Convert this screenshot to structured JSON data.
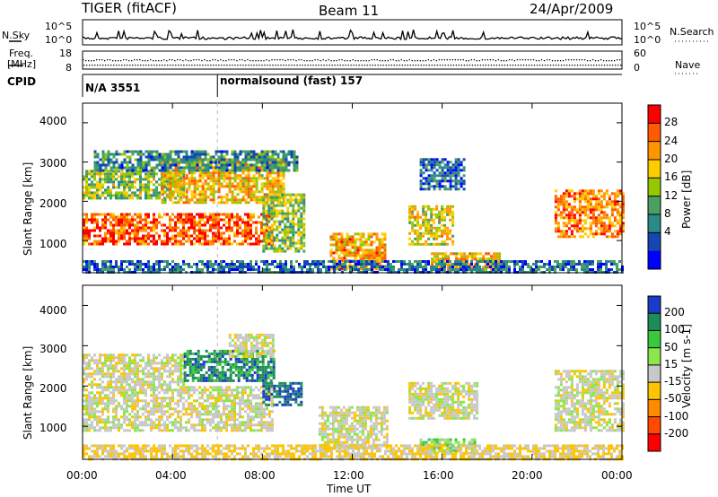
{
  "header": {
    "radar": "TIGER (fitACF)",
    "beam": "Beam 11",
    "date": "24/Apr/2009"
  },
  "top_panels": {
    "nsky_label": "N.Sky",
    "nsky_ticks": [
      "10^5",
      "10^0"
    ],
    "nsearch_label": "N.Search",
    "nsearch_ticks": [
      "10^5",
      "10^0"
    ],
    "freq_label_line1": "Freq.",
    "freq_label_line2": "[MHz]",
    "freq_ticks": [
      "18",
      "8"
    ],
    "nave_label": "Nave",
    "nave_ticks": [
      "60",
      "0"
    ],
    "cpid_label": "CPID",
    "cpid_segments": [
      {
        "text": "N/A 3551",
        "start_hour": 0
      },
      {
        "text": "normalsound (fast) 157",
        "start_hour": 6
      }
    ]
  },
  "axes": {
    "x_ticks": [
      "00:00",
      "04:00",
      "08:00",
      "12:00",
      "16:00",
      "20:00",
      "00:00"
    ],
    "x_label": "Time UT",
    "y_ticks": [
      "4000",
      "3000",
      "2000",
      "1000"
    ],
    "y_label": "Slant Range [km]"
  },
  "colorbars": {
    "power": {
      "label": "Power [dB]",
      "ticks": [
        "28",
        "24",
        "20",
        "16",
        "12",
        "8",
        "4"
      ],
      "colors": [
        "#ff0000",
        "#ff5a00",
        "#ff9600",
        "#ffcc00",
        "#94c800",
        "#4aa060",
        "#2a8a88",
        "#1448b0",
        "#0000ff"
      ]
    },
    "velocity": {
      "label": "Velocity [m s-1]",
      "ticks": [
        "200",
        "100",
        "50",
        "15",
        "-15",
        "-50",
        "-100",
        "-200"
      ],
      "colors": [
        "#1a3cc8",
        "#1e8c5a",
        "#3cc83c",
        "#8ae64a",
        "#c8c8c8",
        "#ffc400",
        "#ff8c00",
        "#ff4a00",
        "#ff0000"
      ]
    }
  },
  "chart_data": [
    {
      "type": "heatmap",
      "title": "Power",
      "x_range_hours": [
        0,
        24
      ],
      "y_range_km": [
        180,
        4500
      ],
      "value_range_db": [
        0,
        30
      ],
      "scale_label": "Power [dB]",
      "echo_regions": [
        {
          "t0": 0.0,
          "t1": 8.5,
          "r0": 900,
          "r1": 1700,
          "value_db": 26
        },
        {
          "t0": 0.0,
          "t1": 4.5,
          "r0": 2050,
          "r1": 2800,
          "value_db": 14
        },
        {
          "t0": 3.5,
          "t1": 9.0,
          "r0": 2000,
          "r1": 3100,
          "value_db": 20
        },
        {
          "t0": 0.5,
          "t1": 9.5,
          "r0": 2800,
          "r1": 3300,
          "value_db": 8
        },
        {
          "t0": 8.0,
          "t1": 9.8,
          "r0": 700,
          "r1": 2200,
          "value_db": 14
        },
        {
          "t0": 11.0,
          "t1": 13.5,
          "r0": 300,
          "r1": 1200,
          "value_db": 22
        },
        {
          "t0": 14.5,
          "t1": 16.5,
          "r0": 900,
          "r1": 1900,
          "value_db": 18
        },
        {
          "t0": 15.0,
          "t1": 17.0,
          "r0": 2300,
          "r1": 3100,
          "value_db": 6
        },
        {
          "t0": 15.5,
          "t1": 18.5,
          "r0": 250,
          "r1": 700,
          "value_db": 20
        },
        {
          "t0": 21.0,
          "t1": 24.0,
          "r0": 1100,
          "r1": 2300,
          "value_db": 24
        },
        {
          "t0": 0.0,
          "t1": 24.0,
          "r0": 180,
          "r1": 500,
          "value_db": 6
        }
      ]
    },
    {
      "type": "heatmap",
      "title": "Velocity",
      "x_range_hours": [
        0,
        24
      ],
      "y_range_km": [
        180,
        4500
      ],
      "value_range_ms": [
        -200,
        200
      ],
      "scale_label": "Velocity [m s-1]",
      "echo_regions": [
        {
          "t0": 0.0,
          "t1": 8.5,
          "r0": 900,
          "r1": 2000,
          "value_ms": 0
        },
        {
          "t0": 0.0,
          "t1": 4.5,
          "r0": 2000,
          "r1": 2800,
          "value_ms": 0
        },
        {
          "t0": 4.5,
          "t1": 8.5,
          "r0": 2100,
          "r1": 2900,
          "value_ms": 150
        },
        {
          "t0": 8.0,
          "t1": 9.7,
          "r0": 1500,
          "r1": 2100,
          "value_ms": 180
        },
        {
          "t0": 6.5,
          "t1": 8.5,
          "r0": 2700,
          "r1": 3300,
          "value_ms": 0
        },
        {
          "t0": 10.5,
          "t1": 13.5,
          "r0": 450,
          "r1": 1500,
          "value_ms": 0
        },
        {
          "t0": 15.0,
          "t1": 17.5,
          "r0": 350,
          "r1": 700,
          "value_ms": 60
        },
        {
          "t0": 14.5,
          "t1": 17.5,
          "r0": 1200,
          "r1": 2100,
          "value_ms": 0
        },
        {
          "t0": 21.0,
          "t1": 24.0,
          "r0": 900,
          "r1": 2400,
          "value_ms": 0
        },
        {
          "t0": 0.0,
          "t1": 24.0,
          "r0": 180,
          "r1": 550,
          "value_ms": -30
        }
      ]
    }
  ]
}
